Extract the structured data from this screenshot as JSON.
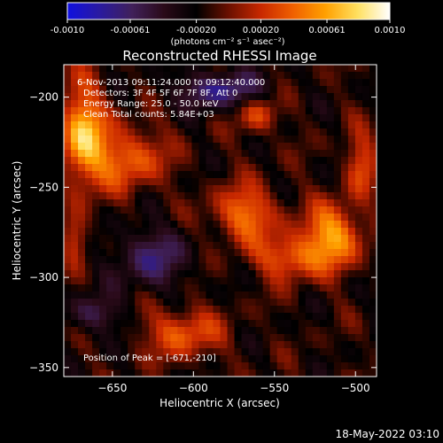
{
  "chart_data": {
    "type": "heatmap",
    "colorbar": {
      "ticks": [
        "-0.0010",
        "-0.00061",
        "-0.00020",
        "0.00020",
        "0.00061",
        "0.0010"
      ],
      "unit": "(photons cm⁻² s⁻¹ asec⁻²)",
      "range": [
        -0.001,
        0.001
      ],
      "colors": [
        "#1010e0",
        "#2a1aa0",
        "#40205a",
        "#2a0a18",
        "#000000",
        "#6a1000",
        "#c82800",
        "#f06000",
        "#ffa000",
        "#ffe060",
        "#ffffff"
      ]
    },
    "title": "Reconstructed RHESSI Image",
    "annotations": [
      "6-Nov-2013 09:11:24.000 to 09:12:40.000",
      "Detectors: 3F 4F 5F 6F 7F 8F, Att 0",
      "Energy Range: 25.0 - 50.0 keV",
      "Clean    Total counts: 5.84E+03"
    ],
    "peak_label": "Position of Peak = [-671,-210]",
    "peak": {
      "x": -671,
      "y": -210
    },
    "xlabel": "Heliocentric X (arcsec)",
    "ylabel": "Heliocentric Y (arcsec)",
    "xticks": [
      -650,
      -600,
      -550,
      -500
    ],
    "yticks": [
      -200,
      -250,
      -300,
      -350
    ],
    "xlim": [
      -680,
      -487
    ],
    "ylim": [
      -355,
      -182
    ],
    "timestamp": "18-May-2022 03:10"
  }
}
